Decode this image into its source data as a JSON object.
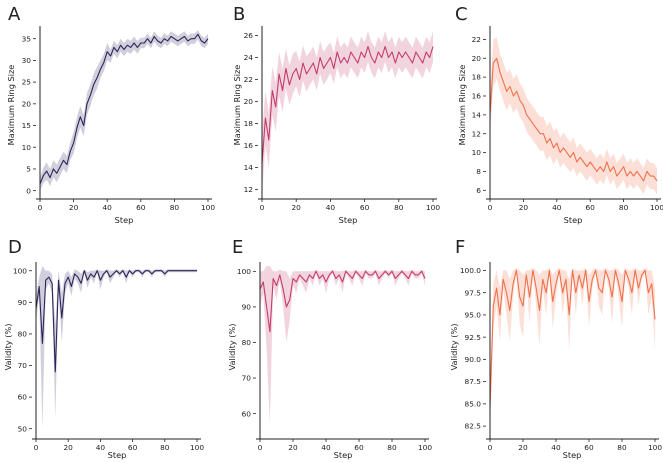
{
  "chart_data": [
    {
      "id": "A",
      "letter": "A",
      "type": "line",
      "color": "#2e2459",
      "xlabel": "Step",
      "ylabel": "Maximum Ring Size",
      "xlim": [
        0,
        100
      ],
      "ylim": [
        -1,
        37
      ],
      "xticks": [
        0,
        20,
        40,
        60,
        80,
        100
      ],
      "yticks": [
        0,
        5,
        10,
        15,
        20,
        25,
        30,
        35
      ],
      "x": [
        0,
        2,
        4,
        6,
        8,
        10,
        12,
        14,
        16,
        18,
        20,
        22,
        24,
        26,
        28,
        30,
        32,
        34,
        36,
        38,
        40,
        42,
        44,
        46,
        48,
        50,
        52,
        54,
        56,
        58,
        60,
        62,
        64,
        66,
        68,
        70,
        72,
        74,
        76,
        78,
        80,
        82,
        84,
        86,
        88,
        90,
        92,
        94,
        96,
        98,
        100
      ],
      "values": [
        1.5,
        3.5,
        4.5,
        3.0,
        5.0,
        4.0,
        5.5,
        7.0,
        6.0,
        9.0,
        11.0,
        14.5,
        17.0,
        15.0,
        20.0,
        22.0,
        24.5,
        26.0,
        28.0,
        29.5,
        32.0,
        31.0,
        33.0,
        32.0,
        33.5,
        32.5,
        33.5,
        33.0,
        34.0,
        33.0,
        34.0,
        34.0,
        35.0,
        34.0,
        35.5,
        34.5,
        34.0,
        35.0,
        34.5,
        35.5,
        35.0,
        34.5,
        35.0,
        35.5,
        34.5,
        35.0,
        35.0,
        36.0,
        34.5,
        34.0,
        35.0
      ],
      "band": [
        1.5,
        1.8,
        2.0,
        2.0,
        2.0,
        2.0,
        2.0,
        2.0,
        2.0,
        2.0,
        2.5,
        2.5,
        2.5,
        2.5,
        2.5,
        2.5,
        2.5,
        2.5,
        2.0,
        2.0,
        2.0,
        1.5,
        1.5,
        1.5,
        1.5,
        1.5,
        1.5,
        1.5,
        1.5,
        1.5,
        1.2,
        1.2,
        1.2,
        1.2,
        1.2,
        1.2,
        1.2,
        1.2,
        1.2,
        1.2,
        1.2,
        1.2,
        1.2,
        1.2,
        1.2,
        1.2,
        1.2,
        1.2,
        1.2,
        1.2,
        1.2
      ]
    },
    {
      "id": "B",
      "letter": "B",
      "type": "line",
      "color": "#c43a6c",
      "xlabel": "Step",
      "ylabel": "Maximum Ring Size",
      "xlim": [
        0,
        100
      ],
      "ylim": [
        11.5,
        26.5
      ],
      "xticks": [
        0,
        20,
        40,
        60,
        80,
        100
      ],
      "yticks": [
        12,
        14,
        16,
        18,
        20,
        22,
        24,
        26
      ],
      "x": [
        0,
        2,
        4,
        6,
        8,
        10,
        12,
        14,
        16,
        18,
        20,
        22,
        24,
        26,
        28,
        30,
        32,
        34,
        36,
        38,
        40,
        42,
        44,
        46,
        48,
        50,
        52,
        54,
        56,
        58,
        60,
        62,
        64,
        66,
        68,
        70,
        72,
        74,
        76,
        78,
        80,
        82,
        84,
        86,
        88,
        90,
        92,
        94,
        96,
        98,
        100
      ],
      "values": [
        14.3,
        18.5,
        16.5,
        21.0,
        19.5,
        22.5,
        21.0,
        23.0,
        21.5,
        22.5,
        23.0,
        22.0,
        23.5,
        22.5,
        23.0,
        23.5,
        22.5,
        24.0,
        23.0,
        23.5,
        24.0,
        23.0,
        24.5,
        23.5,
        24.0,
        23.5,
        24.5,
        24.0,
        23.5,
        24.5,
        24.0,
        25.0,
        24.0,
        23.5,
        24.5,
        24.0,
        25.0,
        24.0,
        24.5,
        23.5,
        24.5,
        24.0,
        24.5,
        24.0,
        23.5,
        24.5,
        24.0,
        23.5,
        24.5,
        24.0,
        25.0
      ],
      "band": [
        2.8,
        2.5,
        2.5,
        2.2,
        2.2,
        2.0,
        2.0,
        1.8,
        1.8,
        1.8,
        1.6,
        1.6,
        1.6,
        1.6,
        1.5,
        1.5,
        1.5,
        1.5,
        1.5,
        1.5,
        1.4,
        1.4,
        1.4,
        1.4,
        1.4,
        1.4,
        1.4,
        1.4,
        1.4,
        1.4,
        1.4,
        1.4,
        1.4,
        1.4,
        1.4,
        1.4,
        1.4,
        1.4,
        1.4,
        1.4,
        1.4,
        1.4,
        1.4,
        1.4,
        1.4,
        1.4,
        1.4,
        1.4,
        1.4,
        1.4,
        1.4
      ]
    },
    {
      "id": "C",
      "letter": "C",
      "type": "line",
      "color": "#f0704a",
      "xlabel": "Step",
      "ylabel": "Maximum Ring Size",
      "xlim": [
        0,
        100
      ],
      "ylim": [
        5.5,
        23
      ],
      "xticks": [
        0,
        20,
        40,
        60,
        80,
        100
      ],
      "yticks": [
        6,
        8,
        10,
        12,
        14,
        16,
        18,
        20,
        22
      ],
      "x": [
        0,
        2,
        4,
        6,
        8,
        10,
        12,
        14,
        16,
        18,
        20,
        22,
        24,
        26,
        28,
        30,
        32,
        34,
        36,
        38,
        40,
        42,
        44,
        46,
        48,
        50,
        52,
        54,
        56,
        58,
        60,
        62,
        64,
        66,
        68,
        70,
        72,
        74,
        76,
        78,
        80,
        82,
        84,
        86,
        88,
        90,
        92,
        94,
        96,
        98,
        100
      ],
      "values": [
        14.0,
        19.5,
        20.0,
        18.5,
        17.5,
        16.5,
        17.0,
        16.0,
        16.5,
        15.5,
        15.0,
        14.0,
        13.5,
        13.0,
        12.5,
        12.0,
        12.0,
        11.0,
        11.5,
        10.5,
        11.0,
        10.0,
        10.5,
        10.0,
        9.5,
        10.0,
        9.0,
        9.5,
        9.0,
        8.5,
        9.0,
        8.5,
        8.0,
        8.5,
        8.0,
        9.0,
        8.0,
        8.5,
        7.5,
        8.0,
        8.5,
        7.5,
        8.0,
        7.5,
        8.0,
        7.5,
        7.0,
        8.0,
        7.5,
        7.5,
        7.0
      ],
      "band": [
        2.5,
        2.5,
        2.2,
        2.0,
        2.0,
        2.0,
        1.8,
        1.8,
        1.8,
        1.8,
        1.8,
        1.8,
        1.8,
        1.8,
        1.8,
        1.8,
        1.8,
        1.8,
        1.8,
        1.8,
        1.6,
        1.6,
        1.6,
        1.6,
        1.6,
        1.6,
        1.5,
        1.5,
        1.5,
        1.5,
        1.4,
        1.4,
        1.4,
        1.4,
        1.4,
        1.4,
        1.4,
        1.4,
        1.4,
        1.4,
        1.4,
        1.4,
        1.4,
        1.4,
        1.4,
        1.4,
        1.4,
        1.4,
        1.4,
        1.4,
        1.4
      ]
    },
    {
      "id": "D",
      "letter": "D",
      "type": "line",
      "color": "#2e2459",
      "xlabel": "Step",
      "ylabel": "Validity (%)",
      "xlim": [
        0,
        100
      ],
      "ylim": [
        48,
        101.5
      ],
      "xticks": [
        0,
        20,
        40,
        60,
        80,
        100
      ],
      "yticks": [
        50,
        60,
        70,
        80,
        90,
        100
      ],
      "x": [
        0,
        2,
        4,
        6,
        8,
        10,
        12,
        14,
        16,
        18,
        20,
        22,
        24,
        26,
        28,
        30,
        32,
        34,
        36,
        38,
        40,
        42,
        44,
        46,
        48,
        50,
        52,
        54,
        56,
        58,
        60,
        62,
        64,
        66,
        68,
        70,
        72,
        74,
        76,
        78,
        80,
        82,
        84,
        86,
        88,
        90,
        92,
        94,
        96,
        98,
        100
      ],
      "values": [
        88,
        95,
        77,
        97,
        98,
        96,
        68,
        97,
        85,
        96,
        98,
        95,
        99,
        98,
        96,
        100,
        97,
        99,
        98,
        100,
        97,
        99,
        100,
        98,
        99,
        100,
        99,
        100,
        98,
        100,
        99,
        100,
        100,
        99,
        100,
        100,
        99,
        100,
        100,
        100,
        99,
        100,
        100,
        100,
        100,
        100,
        100,
        100,
        100,
        100,
        100
      ],
      "band": [
        4,
        3,
        27,
        3,
        2,
        3,
        15,
        3,
        8,
        3,
        2,
        3,
        1.5,
        2,
        3,
        0.5,
        2.5,
        1,
        2,
        0.5,
        3,
        1,
        0.5,
        2,
        1,
        0.5,
        1,
        0.5,
        2,
        0.5,
        1,
        0.5,
        0.5,
        1,
        0.5,
        0.5,
        1,
        0.5,
        0.5,
        0.5,
        1,
        0.5,
        0.5,
        0.5,
        0.5,
        0.5,
        0.5,
        0.5,
        0.5,
        0.5,
        0.5
      ]
    },
    {
      "id": "E",
      "letter": "E",
      "type": "line",
      "color": "#c43a6c",
      "xlabel": "Step",
      "ylabel": "Validity (%)",
      "xlim": [
        0,
        100
      ],
      "ylim": [
        54,
        101.5
      ],
      "xticks": [
        0,
        20,
        40,
        60,
        80,
        100
      ],
      "yticks": [
        60,
        70,
        80,
        90,
        100
      ],
      "x": [
        0,
        2,
        4,
        6,
        8,
        10,
        12,
        14,
        16,
        18,
        20,
        22,
        24,
        26,
        28,
        30,
        32,
        34,
        36,
        38,
        40,
        42,
        44,
        46,
        48,
        50,
        52,
        54,
        56,
        58,
        60,
        62,
        64,
        66,
        68,
        70,
        72,
        74,
        76,
        78,
        80,
        82,
        84,
        86,
        88,
        90,
        92,
        94,
        96,
        98,
        100
      ],
      "values": [
        95,
        97,
        90,
        83,
        98,
        96,
        99,
        95,
        90,
        92,
        98,
        97,
        99,
        98,
        97,
        99,
        98,
        100,
        98,
        99,
        97,
        99,
        100,
        98,
        99,
        97,
        100,
        99,
        98,
        100,
        99,
        98,
        100,
        99,
        99,
        100,
        98,
        99,
        100,
        99,
        100,
        98,
        99,
        100,
        99,
        98,
        100,
        99,
        99,
        100,
        98
      ],
      "band": [
        5,
        3,
        12,
        26,
        2,
        4,
        1.5,
        5,
        10,
        6,
        2,
        3,
        1,
        2,
        3,
        1,
        2,
        0.5,
        2,
        1,
        3,
        1,
        0.5,
        2,
        1,
        3,
        0.5,
        1,
        2,
        0.5,
        1,
        2,
        0.5,
        1,
        1,
        0.5,
        2,
        1,
        0.5,
        1,
        0.5,
        2,
        1,
        0.5,
        1,
        2,
        0.5,
        1,
        1,
        0.5,
        2
      ]
    },
    {
      "id": "F",
      "letter": "F",
      "type": "line",
      "color": "#f0704a",
      "xlabel": "Step",
      "ylabel": "Validity (%)",
      "xlim": [
        0,
        100
      ],
      "ylim": [
        81.5,
        100.5
      ],
      "xticks": [
        0,
        20,
        40,
        60,
        80,
        100
      ],
      "yticks": [
        82.5,
        85.0,
        87.5,
        90.0,
        92.5,
        95.0,
        97.5,
        100.0
      ],
      "ytick_labels": [
        "82.5",
        "85.0",
        "87.5",
        "90.0",
        "92.5",
        "95.0",
        "97.5",
        "100.0"
      ],
      "x": [
        0,
        2,
        4,
        6,
        8,
        10,
        12,
        14,
        16,
        18,
        20,
        22,
        24,
        26,
        28,
        30,
        32,
        34,
        36,
        38,
        40,
        42,
        44,
        46,
        48,
        50,
        52,
        54,
        56,
        58,
        60,
        62,
        64,
        66,
        68,
        70,
        72,
        74,
        76,
        78,
        80,
        82,
        84,
        86,
        88,
        90,
        92,
        94,
        96,
        98,
        100
      ],
      "values": [
        84.5,
        96.0,
        98.0,
        95.0,
        99.0,
        97.5,
        95.5,
        98.5,
        100.0,
        97.0,
        96.0,
        99.5,
        97.0,
        100.0,
        98.0,
        95.5,
        99.0,
        97.5,
        100.0,
        96.5,
        98.5,
        100.0,
        97.5,
        99.0,
        95.0,
        100.0,
        97.5,
        99.5,
        98.0,
        100.0,
        96.5,
        99.0,
        100.0,
        98.0,
        97.5,
        100.0,
        99.0,
        97.0,
        100.0,
        98.5,
        96.5,
        100.0,
        99.0,
        97.5,
        100.0,
        98.0,
        99.5,
        100.0,
        97.5,
        98.5,
        94.5
      ],
      "band": [
        2.5,
        2.5,
        2.0,
        3.0,
        1.0,
        2.5,
        3.5,
        1.5,
        0.3,
        3.0,
        3.5,
        0.5,
        3.0,
        0.3,
        2.0,
        4.0,
        1.0,
        2.5,
        0.3,
        3.0,
        1.5,
        0.3,
        2.5,
        1.0,
        4.0,
        0.3,
        2.5,
        0.5,
        2.0,
        0.3,
        3.0,
        1.0,
        0.3,
        2.0,
        2.5,
        0.3,
        1.0,
        3.0,
        0.3,
        1.5,
        3.0,
        0.3,
        1.0,
        2.5,
        0.3,
        2.0,
        0.5,
        0.3,
        2.5,
        1.5,
        3.5
      ]
    }
  ]
}
